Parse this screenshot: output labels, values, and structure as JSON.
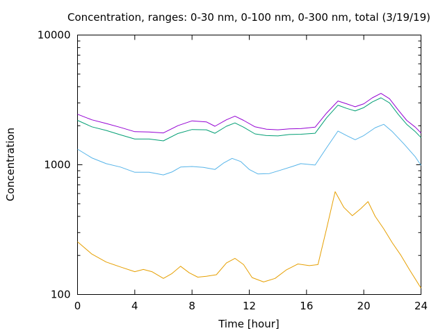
{
  "chart_data": {
    "type": "line",
    "title": "Concentration, ranges: 0-30 nm, 0-100 nm, 0-300 nm, total (3/19/19)",
    "xlabel": "Time [hour]",
    "ylabel": "Concentration",
    "xlim": [
      0,
      24
    ],
    "ylim": [
      100,
      10000
    ],
    "y_scale": "log",
    "grid": false,
    "legend": "none",
    "x_ticks": [
      0,
      4,
      8,
      12,
      16,
      20,
      24
    ],
    "x_tick_labels": [
      "0",
      "4",
      "8",
      "12",
      "16",
      "20",
      "24"
    ],
    "y_ticks": [
      100,
      1000,
      10000
    ],
    "y_tick_labels": [
      "100",
      "1000",
      "10000"
    ],
    "series": [
      {
        "color": "#e69f00",
        "x": [
          0,
          1,
          2,
          3,
          4,
          4.6,
          5.2,
          6,
          6.6,
          7.2,
          7.8,
          8.4,
          9,
          9.7,
          10.4,
          11,
          11.6,
          12.2,
          13,
          13.8,
          14.6,
          15.4,
          16.2,
          16.8,
          17.4,
          18,
          18.6,
          19.2,
          19.8,
          20.3,
          20.8,
          21.4,
          22,
          22.6,
          23.2,
          24
        ],
        "y": [
          255,
          205,
          178,
          163,
          150,
          156,
          150,
          133,
          145,
          165,
          147,
          136,
          138,
          142,
          175,
          190,
          170,
          135,
          125,
          133,
          155,
          172,
          167,
          170,
          320,
          620,
          470,
          405,
          460,
          520,
          400,
          320,
          250,
          200,
          155,
          112
        ]
      },
      {
        "color": "#56b4e9",
        "x": [
          0,
          1,
          2,
          3,
          4,
          5,
          6,
          6.6,
          7.2,
          8,
          8.8,
          9.6,
          10.2,
          10.8,
          11.4,
          12,
          12.6,
          13.4,
          14.2,
          15,
          15.6,
          16.6,
          17.4,
          18.2,
          18.8,
          19.4,
          20,
          20.8,
          21.4,
          22,
          22.8,
          23.6,
          24
        ],
        "y": [
          1320,
          1130,
          1020,
          960,
          875,
          875,
          835,
          880,
          960,
          970,
          955,
          920,
          1030,
          1120,
          1060,
          920,
          850,
          855,
          910,
          970,
          1020,
          995,
          1350,
          1820,
          1680,
          1560,
          1680,
          1930,
          2050,
          1800,
          1450,
          1150,
          990
        ]
      },
      {
        "color": "#009e73",
        "x": [
          0,
          1,
          2,
          3,
          4,
          5,
          6,
          7,
          8,
          9,
          9.6,
          10.4,
          11,
          11.6,
          12.4,
          13.2,
          14,
          14.8,
          15.6,
          16.6,
          17.4,
          18.2,
          18.8,
          19.4,
          20,
          20.6,
          21.2,
          21.8,
          22.4,
          23,
          23.6,
          24
        ],
        "y": [
          2200,
          1960,
          1840,
          1700,
          1580,
          1580,
          1530,
          1740,
          1870,
          1860,
          1750,
          1980,
          2100,
          1950,
          1730,
          1680,
          1670,
          1710,
          1720,
          1750,
          2300,
          2880,
          2720,
          2600,
          2760,
          3050,
          3280,
          3000,
          2450,
          2050,
          1800,
          1620
        ]
      },
      {
        "color": "#9400d3",
        "x": [
          0,
          1,
          2,
          3,
          4,
          5,
          6,
          7,
          8,
          9,
          9.6,
          10.4,
          11,
          11.6,
          12.4,
          13.2,
          14,
          14.8,
          15.6,
          16.6,
          17.4,
          18.2,
          18.8,
          19.4,
          20,
          20.6,
          21.2,
          21.8,
          22.4,
          23,
          23.6,
          24
        ],
        "y": [
          2450,
          2220,
          2080,
          1940,
          1800,
          1790,
          1760,
          2000,
          2180,
          2140,
          1980,
          2220,
          2370,
          2200,
          1960,
          1880,
          1860,
          1890,
          1900,
          1950,
          2500,
          3100,
          2950,
          2800,
          2950,
          3280,
          3550,
          3230,
          2650,
          2200,
          1950,
          1760
        ]
      }
    ]
  }
}
